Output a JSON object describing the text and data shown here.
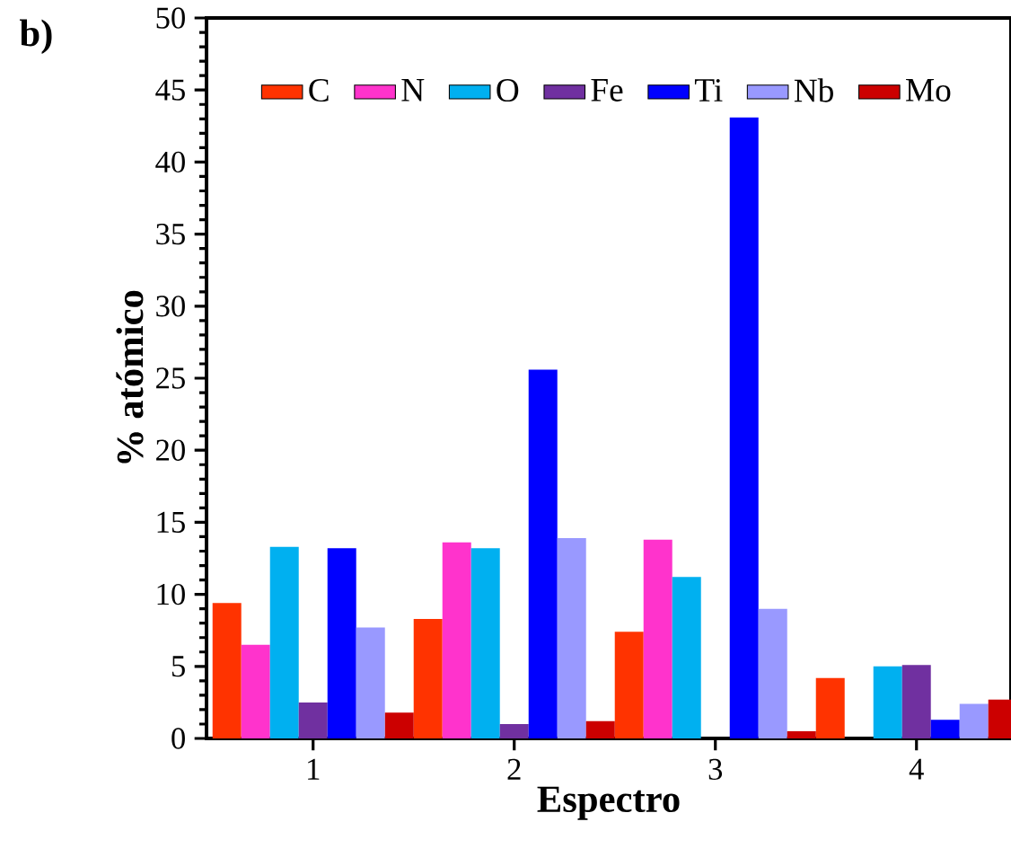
{
  "chart_data": {
    "type": "bar",
    "annotations": [
      "b)"
    ],
    "xlabel": "Espectro",
    "ylabel": "% atómico",
    "categories": [
      "1",
      "2",
      "3",
      "4"
    ],
    "series": [
      {
        "name": "C",
        "color": "#ff3300",
        "values": [
          9.4,
          8.3,
          7.4,
          4.2
        ]
      },
      {
        "name": "N",
        "color": "#ff33cc",
        "values": [
          6.5,
          13.6,
          13.8,
          0
        ]
      },
      {
        "name": "O",
        "color": "#00b0f0",
        "values": [
          13.3,
          13.2,
          11.2,
          5.0
        ]
      },
      {
        "name": "Fe",
        "color": "#7030a0",
        "values": [
          2.5,
          1.0,
          0,
          5.1
        ]
      },
      {
        "name": "Ti",
        "color": "#0000ff",
        "values": [
          13.2,
          25.6,
          43.1,
          1.3
        ]
      },
      {
        "name": "Nb",
        "color": "#9999ff",
        "values": [
          7.7,
          13.9,
          9.0,
          2.4
        ]
      },
      {
        "name": "Mo",
        "color": "#cc0000",
        "values": [
          1.8,
          1.2,
          0.5,
          2.7
        ]
      }
    ],
    "ylim": [
      0,
      50
    ],
    "yticks": [
      0,
      5,
      10,
      15,
      20,
      25,
      30,
      35,
      40,
      45,
      50
    ],
    "legend": "top",
    "grid": false
  }
}
